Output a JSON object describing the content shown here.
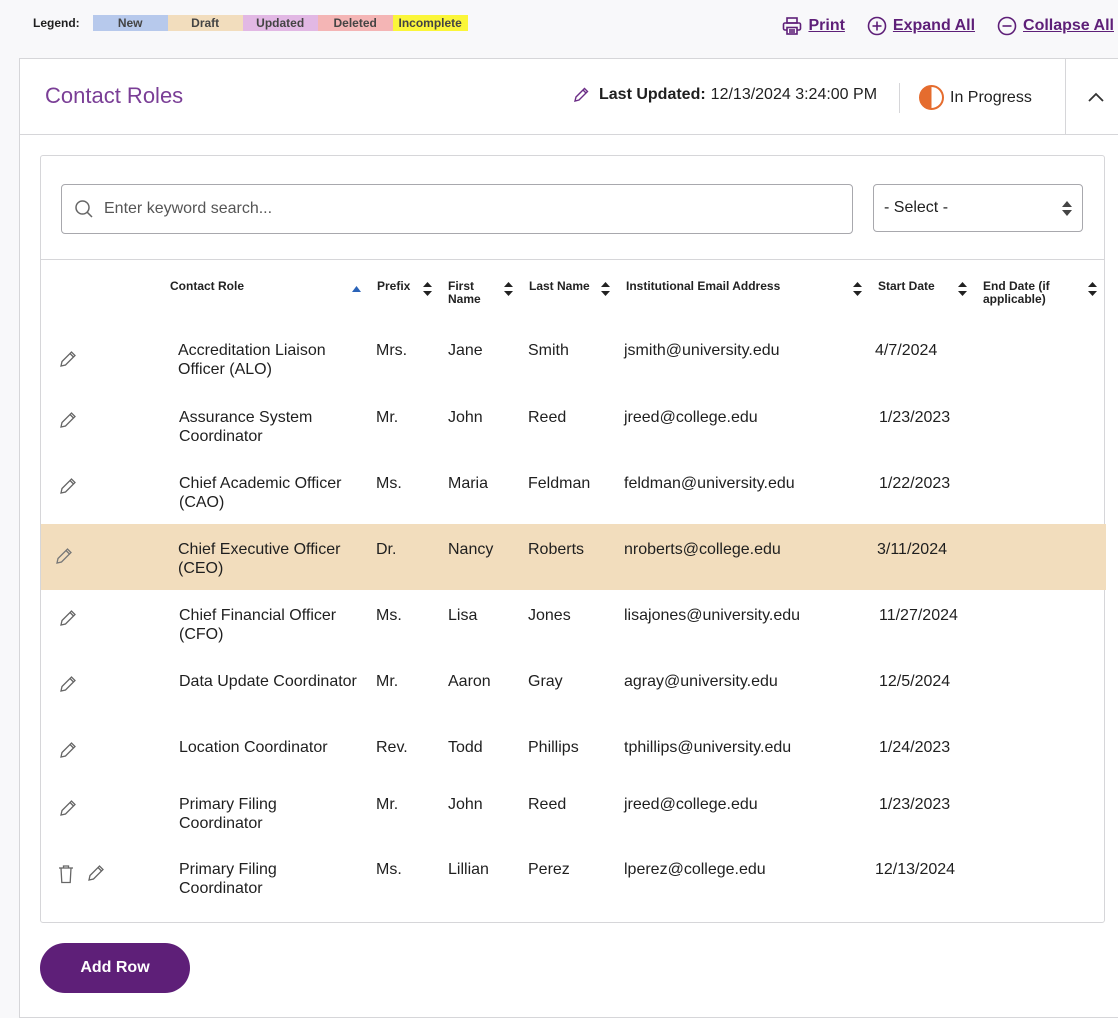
{
  "legend": {
    "title": "Legend:",
    "items": [
      {
        "label": "New",
        "color": "#b7c9ec"
      },
      {
        "label": "Draft",
        "color": "#f2ddbd"
      },
      {
        "label": "Updated",
        "color": "#e2b8e4"
      },
      {
        "label": "Deleted",
        "color": "#f4b5b5"
      },
      {
        "label": "Incomplete",
        "color": "#fbf639"
      }
    ]
  },
  "actions": {
    "print": "Print",
    "expand_all": "Expand All",
    "collapse_all": "Collapse All"
  },
  "section": {
    "title": "Contact Roles",
    "last_updated_label": "Last Updated:",
    "last_updated_value": "12/13/2024 3:24:00 PM",
    "status": "In Progress",
    "status_color": "#e56c2e"
  },
  "search": {
    "placeholder": "Enter keyword search...",
    "select_value": "- Select -"
  },
  "table": {
    "columns": {
      "contact_role": "Contact Role",
      "prefix": "Prefix",
      "first_name": "First Name",
      "last_name": "Last Name",
      "email": "Institutional Email Address",
      "start_date": "Start Date",
      "end_date": "End Date (if applicable)"
    },
    "rows": [
      {
        "role": "Accreditation Liaison Officer (ALO)",
        "prefix": "Mrs.",
        "first": "Jane",
        "last": "Smith",
        "email": "jsmith@university.edu",
        "start": "4/7/2024",
        "end": ""
      },
      {
        "role": "Assurance System Coordinator",
        "prefix": "Mr.",
        "first": "John",
        "last": "Reed",
        "email": "jreed@college.edu",
        "start": "1/23/2023",
        "end": ""
      },
      {
        "role": "Chief Academic Officer (CAO)",
        "prefix": "Ms.",
        "first": "Maria",
        "last": "Feldman",
        "email": "feldman@university.edu",
        "start": "1/22/2023",
        "end": ""
      },
      {
        "role": "Chief Executive Officer (CEO)",
        "prefix": "Dr.",
        "first": "Nancy",
        "last": "Roberts",
        "email": "nroberts@college.edu",
        "start": "3/11/2024",
        "end": "",
        "highlight": "Draft"
      },
      {
        "role": "Chief Financial Officer (CFO)",
        "prefix": "Ms.",
        "first": "Lisa",
        "last": "Jones",
        "email": "lisajones@university.edu",
        "start": "11/27/2024",
        "end": ""
      },
      {
        "role": "Data Update Coordinator",
        "prefix": "Mr.",
        "first": "Aaron",
        "last": "Gray",
        "email": "agray@university.edu",
        "start": "12/5/2024",
        "end": ""
      },
      {
        "role": "Location Coordinator",
        "prefix": "Rev.",
        "first": "Todd",
        "last": "Phillips",
        "email": "tphillips@university.edu",
        "start": "1/24/2023",
        "end": ""
      },
      {
        "role": "Primary Filing Coordinator",
        "prefix": "Mr.",
        "first": "John",
        "last": "Reed",
        "email": "jreed@college.edu",
        "start": "1/23/2023",
        "end": ""
      },
      {
        "role": "Primary Filing Coordinator",
        "prefix": "Ms.",
        "first": "Lillian",
        "last": "Perez",
        "email": "lperez@college.edu",
        "start": "12/13/2024",
        "end": "",
        "deletable": true
      }
    ]
  },
  "buttons": {
    "add_row": "Add Row"
  }
}
